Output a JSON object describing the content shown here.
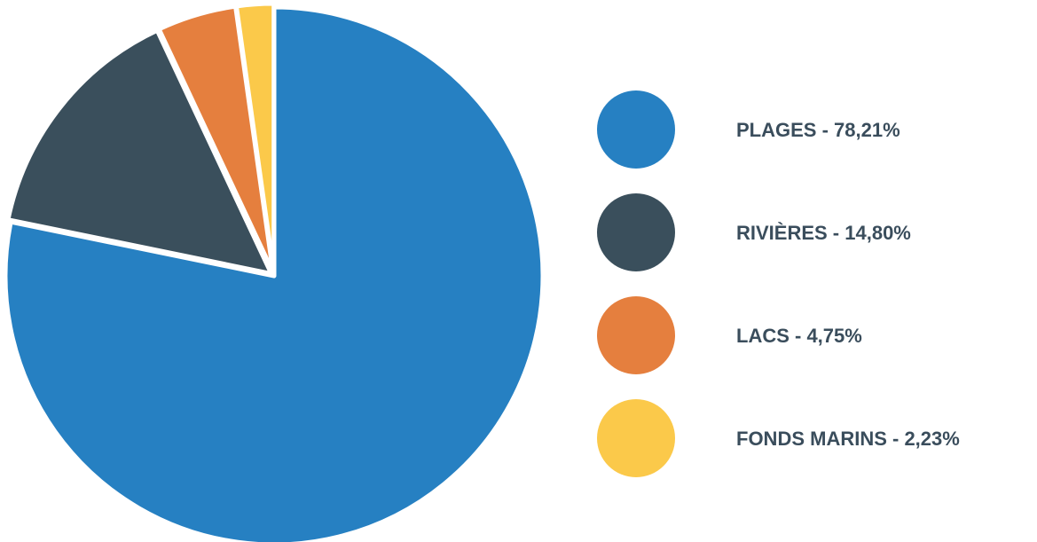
{
  "chart_data": {
    "type": "pie",
    "title": "",
    "slices": [
      {
        "label": "PLAGES",
        "value": 78.21,
        "color": "#2680c2",
        "legend_text": "PLAGES - 78,21%"
      },
      {
        "label": "RIVIÈRES",
        "value": 14.8,
        "color": "#3a4f5c",
        "legend_text": "RIVIÈRES - 14,80%"
      },
      {
        "label": "LACS",
        "value": 4.75,
        "color": "#e57f3e",
        "legend_text": "LACS - 4,75%"
      },
      {
        "label": "FONDS MARINS",
        "value": 2.23,
        "color": "#fbc94a",
        "legend_text": "FONDS MARINS - 2,23%"
      }
    ],
    "start_angle": "top",
    "direction": "clockwise",
    "legend_position": "right"
  }
}
